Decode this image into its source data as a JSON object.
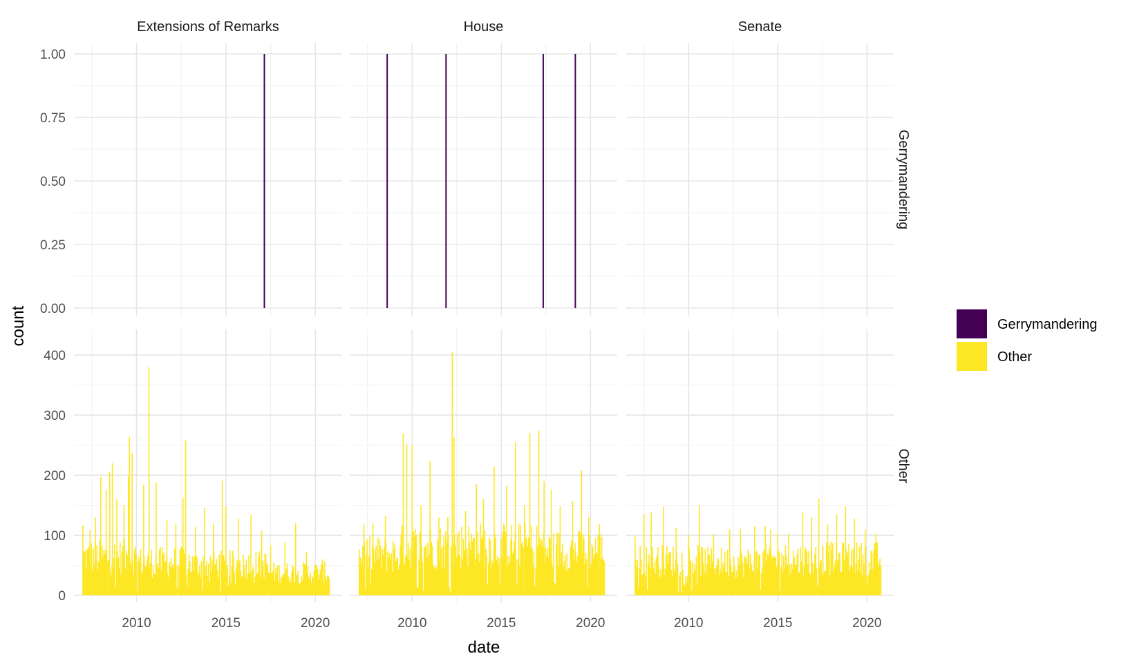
{
  "chart_data": {
    "type": "bar",
    "xlabel": "date",
    "ylabel": "count",
    "facet_columns": [
      "Extensions of Remarks",
      "House",
      "Senate"
    ],
    "facet_rows": [
      "Gerrymandering",
      "Other"
    ],
    "x_ticks": [
      2010,
      2015,
      2020
    ],
    "xlim": [
      2006.5,
      2021.5
    ],
    "rows": [
      {
        "name": "Gerrymandering",
        "ylim": [
          0,
          1
        ],
        "y_ticks": [
          "0.00",
          "0.25",
          "0.50",
          "0.75",
          "1.00"
        ],
        "y_tick_values": [
          0,
          0.25,
          0.5,
          0.75,
          1.0
        ]
      },
      {
        "name": "Other",
        "ylim": [
          0,
          430
        ],
        "y_ticks": [
          "0",
          "100",
          "200",
          "300",
          "400"
        ],
        "y_tick_values": [
          0,
          100,
          200,
          300,
          400
        ]
      }
    ],
    "series": [
      {
        "name": "Gerrymandering",
        "color": "#440154"
      },
      {
        "name": "Other",
        "color": "#FDE725"
      }
    ],
    "legend": {
      "placement": "right",
      "entries": [
        "Gerrymandering",
        "Other"
      ]
    },
    "gerrymandering_events": {
      "Extensions of Remarks": [
        2017.15
      ],
      "House": [
        2008.6,
        2011.9,
        2017.35,
        2019.15
      ],
      "Senate": []
    },
    "other_series": {
      "date_range": [
        2007.0,
        2020.75
      ],
      "Extensions of Remarks": {
        "spikes": [
          [
            2007.0,
            117
          ],
          [
            2007.4,
            108
          ],
          [
            2007.7,
            130
          ],
          [
            2008.0,
            197
          ],
          [
            2008.3,
            176
          ],
          [
            2008.5,
            205
          ],
          [
            2008.65,
            220
          ],
          [
            2008.9,
            160
          ],
          [
            2009.3,
            150
          ],
          [
            2009.55,
            197
          ],
          [
            2009.6,
            264
          ],
          [
            2009.75,
            237
          ],
          [
            2010.4,
            184
          ],
          [
            2010.7,
            380
          ],
          [
            2011.1,
            188
          ],
          [
            2011.7,
            125
          ],
          [
            2012.2,
            120
          ],
          [
            2012.6,
            162
          ],
          [
            2012.75,
            258
          ],
          [
            2013.3,
            114
          ],
          [
            2013.8,
            146
          ],
          [
            2014.3,
            120
          ],
          [
            2014.8,
            191
          ],
          [
            2015.0,
            148
          ],
          [
            2015.7,
            128
          ],
          [
            2016.4,
            134
          ],
          [
            2017.0,
            108
          ],
          [
            2017.5,
            84
          ],
          [
            2018.3,
            88
          ],
          [
            2018.9,
            120
          ],
          [
            2019.5,
            72
          ],
          [
            2020.4,
            60
          ]
        ],
        "segments": [
          [
            2007.0,
            2010.0,
            75
          ],
          [
            2010.0,
            2013.0,
            65
          ],
          [
            2013.0,
            2017.3,
            60
          ],
          [
            2017.3,
            2020.75,
            45
          ]
        ]
      },
      "House": {
        "spikes": [
          [
            2007.3,
            118
          ],
          [
            2007.8,
            120
          ],
          [
            2008.5,
            132
          ],
          [
            2009.5,
            270
          ],
          [
            2009.7,
            252
          ],
          [
            2010.0,
            248
          ],
          [
            2010.5,
            150
          ],
          [
            2011.0,
            224
          ],
          [
            2011.5,
            130
          ],
          [
            2012.0,
            130
          ],
          [
            2012.25,
            405
          ],
          [
            2012.35,
            263
          ],
          [
            2013.0,
            140
          ],
          [
            2013.6,
            185
          ],
          [
            2014.0,
            160
          ],
          [
            2014.6,
            214
          ],
          [
            2015.3,
            183
          ],
          [
            2015.8,
            255
          ],
          [
            2016.3,
            150
          ],
          [
            2016.6,
            270
          ],
          [
            2017.1,
            274
          ],
          [
            2017.4,
            190
          ],
          [
            2017.8,
            176
          ],
          [
            2018.3,
            148
          ],
          [
            2019.0,
            157
          ],
          [
            2019.5,
            208
          ],
          [
            2019.9,
            130
          ],
          [
            2020.5,
            118
          ]
        ],
        "segments": [
          [
            2007.0,
            2009.3,
            80
          ],
          [
            2009.3,
            2012.0,
            95
          ],
          [
            2012.0,
            2017.3,
            98
          ],
          [
            2017.3,
            2020.75,
            88
          ]
        ]
      },
      "Senate": {
        "spikes": [
          [
            2007.0,
            98
          ],
          [
            2007.5,
            135
          ],
          [
            2007.9,
            138
          ],
          [
            2008.6,
            148
          ],
          [
            2009.3,
            113
          ],
          [
            2010.0,
            100
          ],
          [
            2010.6,
            150
          ],
          [
            2011.4,
            102
          ],
          [
            2012.3,
            110
          ],
          [
            2012.9,
            110
          ],
          [
            2013.7,
            115
          ],
          [
            2014.3,
            115
          ],
          [
            2014.6,
            110
          ],
          [
            2015.0,
            105
          ],
          [
            2015.6,
            103
          ],
          [
            2016.4,
            138
          ],
          [
            2016.9,
            130
          ],
          [
            2017.3,
            161
          ],
          [
            2017.8,
            118
          ],
          [
            2018.3,
            135
          ],
          [
            2018.8,
            148
          ],
          [
            2019.3,
            128
          ],
          [
            2019.9,
            110
          ],
          [
            2020.5,
            102
          ]
        ],
        "segments": [
          [
            2007.0,
            2011.0,
            68
          ],
          [
            2011.0,
            2014.0,
            65
          ],
          [
            2014.0,
            2017.3,
            70
          ],
          [
            2017.3,
            2020.75,
            72
          ]
        ]
      }
    }
  }
}
